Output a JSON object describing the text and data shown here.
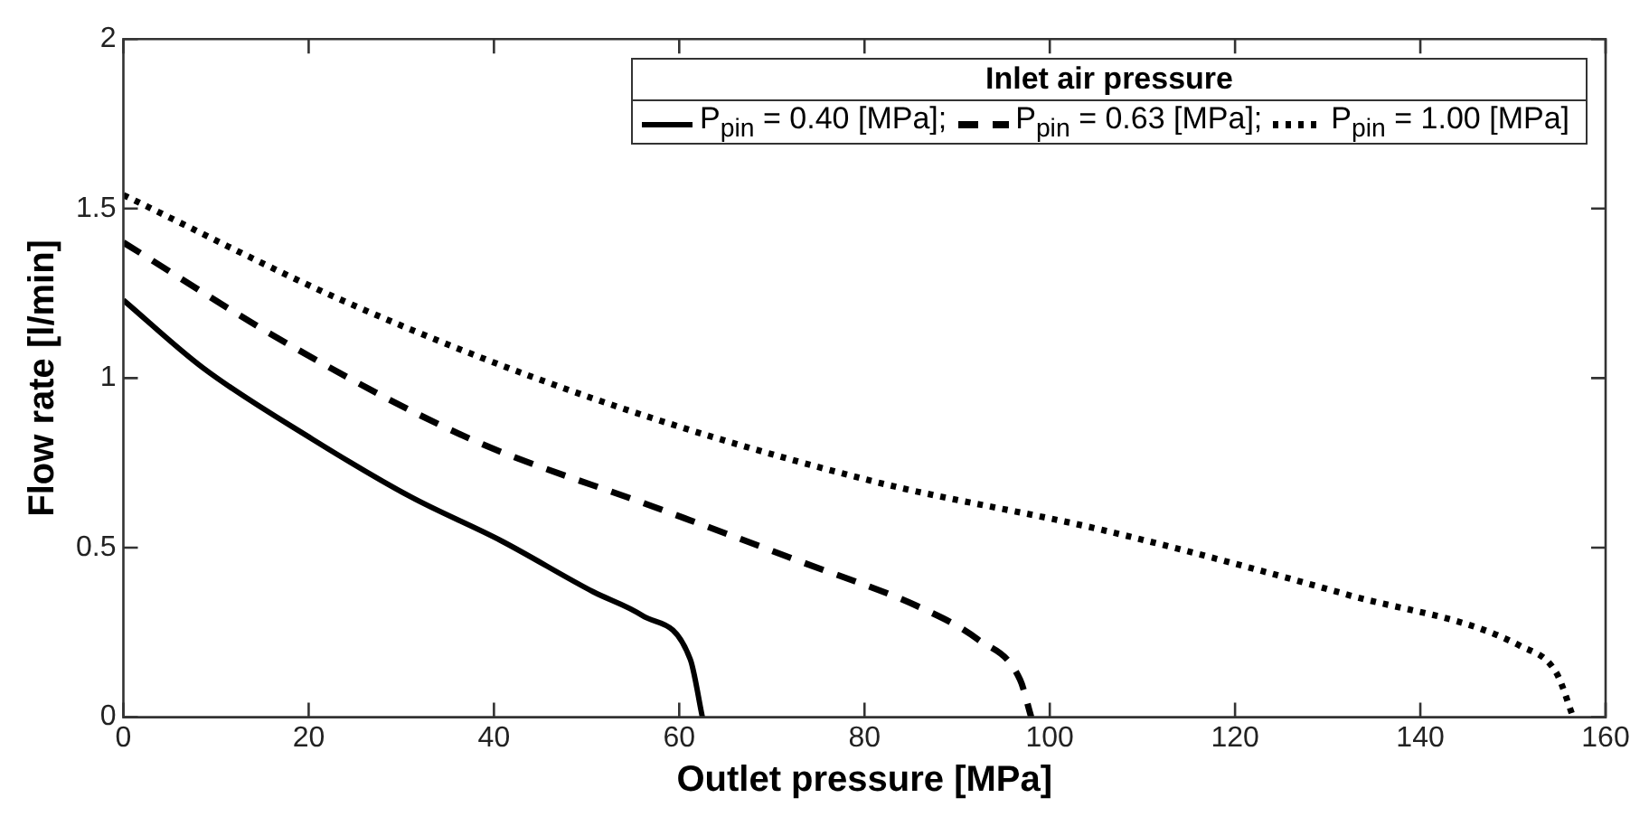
{
  "chart_data": {
    "type": "line",
    "xlabel": "Outlet pressure [MPa]",
    "ylabel": "Flow rate [l/min]",
    "legend_title": "Inlet air pressure",
    "legend": "top right",
    "grid": false,
    "marker": "none",
    "xlim": [
      0,
      160
    ],
    "xticks": [
      0,
      20,
      40,
      60,
      80,
      100,
      120,
      140,
      160
    ],
    "ylim": [
      0,
      2
    ],
    "yticks": [
      0,
      0.5,
      1,
      1.5,
      2
    ],
    "series": [
      {
        "name": "P$_{pin}$ = 0.40 [MPa];",
        "color": "#000000",
        "line_style": "solid",
        "x": [
          0,
          8.6,
          20.4,
          31,
          40.8,
          50.7,
          56,
          61.2,
          62.5
        ],
        "values": [
          1.23,
          1.03,
          0.82,
          0.65,
          0.52,
          0.37,
          0.3,
          0.17,
          0
        ]
      },
      {
        "name": "P$_{pin}$ = 0.63 [MPa];",
        "color": "#000000",
        "line_style": "dashed",
        "x": [
          0,
          17.8,
          37.5,
          57.3,
          73,
          86.3,
          92.2,
          96.8,
          98
        ],
        "values": [
          1.4,
          1.1,
          0.82,
          0.62,
          0.46,
          0.32,
          0.23,
          0.11,
          0
        ]
      },
      {
        "name": "P$_{pin}$ = 1.00 [MPa]",
        "color": "#000000",
        "line_style": "dotted",
        "x": [
          0,
          24.4,
          50.7,
          80.3,
          106,
          132.3,
          150.8,
          154.7,
          156.5
        ],
        "values": [
          1.54,
          1.22,
          0.94,
          0.7,
          0.55,
          0.36,
          0.21,
          0.13,
          0
        ]
      }
    ]
  }
}
